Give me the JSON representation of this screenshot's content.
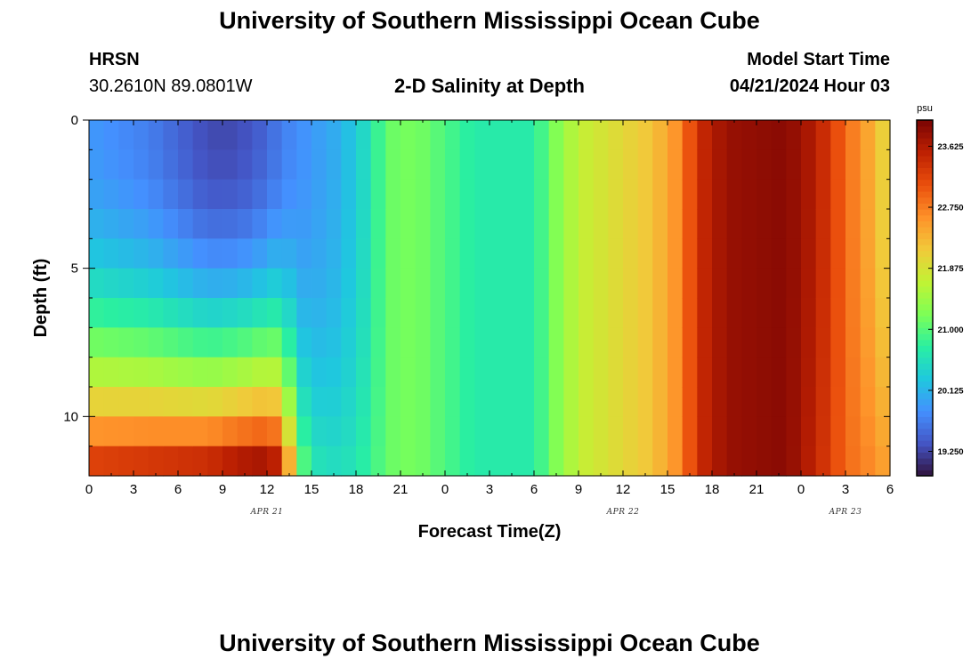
{
  "header": {
    "title": "University of Southern Mississippi Ocean Cube",
    "station": "HRSN",
    "coords": "30.2610N  89.0801W",
    "plot_title": "2-D Salinity at Depth",
    "model_start_label": "Model Start Time",
    "model_start_value": "04/21/2024 Hour 03"
  },
  "footer": {
    "title": "University of Southern Mississippi Ocean Cube"
  },
  "chart_data": {
    "type": "heatmap",
    "title": "2-D Salinity at Depth",
    "xlabel": "Forecast Time(Z)",
    "ylabel": "Depth (ft)",
    "x_tick_labels": [
      "0",
      "3",
      "6",
      "9",
      "12",
      "15",
      "18",
      "21",
      "0",
      "3",
      "6",
      "9",
      "12",
      "15",
      "18",
      "21",
      "0",
      "3",
      "6"
    ],
    "x_range_hours": [
      0,
      54
    ],
    "date_labels": [
      {
        "text": "APR 21",
        "hour": 12
      },
      {
        "text": "APR 22",
        "hour": 36
      },
      {
        "text": "APR 23",
        "hour": 51
      }
    ],
    "y_ticks": [
      0,
      5,
      10
    ],
    "ylim": [
      0,
      12
    ],
    "y_inverted": true,
    "depths_ft": [
      0.25,
      1.25,
      2.25,
      3.25,
      4.25,
      5.25,
      6.25,
      7.25,
      8.25,
      9.25,
      10.25,
      11.25
    ],
    "colorbar": {
      "unit": "psu",
      "min": 18.9,
      "max": 24.0,
      "tick_labels": [
        "23.625",
        "22.750",
        "21.875",
        "21.000",
        "20.125",
        "19.250"
      ],
      "colors": [
        "#30123b",
        "#4454c4",
        "#4490fe",
        "#1fc8de",
        "#29efa2",
        "#7dff56",
        "#c1f334",
        "#f1ca3a",
        "#fe922a",
        "#ea4f0d",
        "#be2102",
        "#7a0403"
      ]
    },
    "keyframes": [
      {
        "hour": 0,
        "surface": 19.9,
        "bottom": 23.2
      },
      {
        "hour": 4,
        "surface": 19.7,
        "bottom": 23.3
      },
      {
        "hour": 8,
        "surface": 19.3,
        "bottom": 23.4
      },
      {
        "hour": 10,
        "surface": 19.3,
        "bottom": 23.6
      },
      {
        "hour": 12,
        "surface": 19.5,
        "bottom": 23.7
      },
      {
        "hour": 13,
        "surface": 19.7,
        "bottom": 23.4
      },
      {
        "hour": 14,
        "surface": 19.8,
        "bottom": 21.3
      },
      {
        "hour": 15,
        "surface": 19.9,
        "bottom": 20.6
      },
      {
        "hour": 17,
        "surface": 20.1,
        "bottom": 20.5
      },
      {
        "hour": 19,
        "surface": 20.6,
        "bottom": 20.8
      },
      {
        "hour": 20,
        "surface": 21.1,
        "bottom": 21.1
      },
      {
        "hour": 22,
        "surface": 21.2,
        "bottom": 21.2
      },
      {
        "hour": 26,
        "surface": 20.7,
        "bottom": 20.7
      },
      {
        "hour": 30,
        "surface": 20.7,
        "bottom": 20.7
      },
      {
        "hour": 31,
        "surface": 21.1,
        "bottom": 21.1
      },
      {
        "hour": 33,
        "surface": 21.7,
        "bottom": 21.7
      },
      {
        "hour": 36,
        "surface": 22.0,
        "bottom": 22.0
      },
      {
        "hour": 38,
        "surface": 22.2,
        "bottom": 22.2
      },
      {
        "hour": 40,
        "surface": 22.7,
        "bottom": 22.7
      },
      {
        "hour": 41,
        "surface": 23.4,
        "bottom": 23.4
      },
      {
        "hour": 43,
        "surface": 23.8,
        "bottom": 23.8
      },
      {
        "hour": 47,
        "surface": 23.9,
        "bottom": 23.9
      },
      {
        "hour": 49,
        "surface": 23.6,
        "bottom": 23.5
      },
      {
        "hour": 51,
        "surface": 22.9,
        "bottom": 22.9
      },
      {
        "hour": 53,
        "surface": 22.3,
        "bottom": 22.6
      },
      {
        "hour": 54,
        "surface": 21.9,
        "bottom": 22.4
      }
    ]
  }
}
